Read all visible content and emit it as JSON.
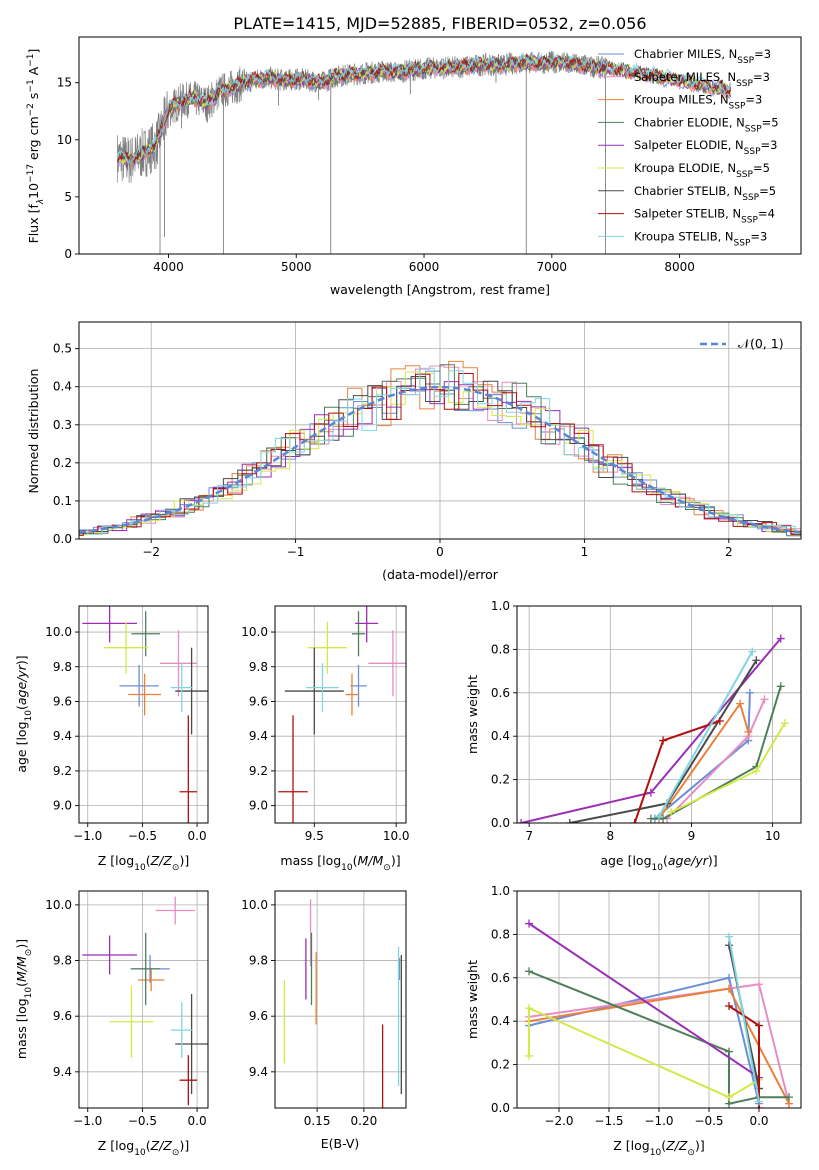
{
  "figure": {
    "title": "PLATE=1415, MJD=52885, FIBERID=0532, z=0.056"
  },
  "legend_models": [
    {
      "name": "Chabrier MILES",
      "n": "3",
      "color": "#6b8ed6"
    },
    {
      "name": "Salpeter MILES",
      "n": "3",
      "color": "#e88cc4"
    },
    {
      "name": "Kroupa MILES",
      "n": "3",
      "color": "#e8823a"
    },
    {
      "name": "Chabrier ELODIE",
      "n": "5",
      "color": "#4f7f5a"
    },
    {
      "name": "Salpeter ELODIE",
      "n": "3",
      "color": "#9a2fb6"
    },
    {
      "name": "Kroupa ELODIE",
      "n": "5",
      "color": "#d4e84a"
    },
    {
      "name": "Chabrier STELIB",
      "n": "5",
      "color": "#4a4a4a"
    },
    {
      "name": "Salpeter STELIB",
      "n": "4",
      "color": "#b01010"
    },
    {
      "name": "Kroupa STELIB",
      "n": "3",
      "color": "#7fd6e0"
    }
  ],
  "legend_n_prefix": "N",
  "legend_n_sub": "SSP",
  "normal_legend": "𝒩(0, 1)",
  "chart_data": [
    {
      "id": "spectrum",
      "type": "line",
      "xlabel": "wavelength [Angstrom, rest frame]",
      "ylabel_main": "Flux [f",
      "ylabel_sub": "λ",
      "ylabel_rest": "10",
      "ylabel_exp": "−17",
      "ylabel_tail": " erg cm",
      "ylabel_exp2": "−2",
      "ylabel_tail2": " s",
      "ylabel_exp3": "−1",
      "ylabel_tail3": " A",
      "ylabel_exp4": "−1",
      "ylabel_end": "]",
      "xlim": [
        3300,
        8950
      ],
      "ylim": [
        0,
        19
      ],
      "xticks": [
        4000,
        5000,
        6000,
        7000,
        8000
      ],
      "yticks": [
        0,
        5,
        10,
        15
      ],
      "data_x_range": [
        3600,
        7420
      ],
      "continuum": [
        [
          3600,
          8.5
        ],
        [
          3700,
          8.2
        ],
        [
          3800,
          8.8
        ],
        [
          3900,
          9.5
        ],
        [
          3950,
          11
        ],
        [
          4000,
          12.6
        ],
        [
          4100,
          13.4
        ],
        [
          4200,
          13.6
        ],
        [
          4300,
          13.2
        ],
        [
          4400,
          14.2
        ],
        [
          4500,
          14.6
        ],
        [
          4600,
          15.0
        ],
        [
          4700,
          15.3
        ],
        [
          4800,
          15.4
        ],
        [
          4900,
          15.2
        ],
        [
          5000,
          15.3
        ],
        [
          5100,
          15.2
        ],
        [
          5200,
          15.0
        ],
        [
          5300,
          15.5
        ],
        [
          5400,
          15.7
        ],
        [
          5500,
          15.8
        ],
        [
          5600,
          15.9
        ],
        [
          5700,
          16.0
        ],
        [
          5800,
          15.9
        ],
        [
          5900,
          16.1
        ],
        [
          6000,
          16.2
        ],
        [
          6100,
          16.3
        ],
        [
          6200,
          16.3
        ],
        [
          6300,
          16.4
        ],
        [
          6400,
          16.5
        ],
        [
          6500,
          16.6
        ],
        [
          6600,
          16.5
        ],
        [
          6700,
          16.7
        ],
        [
          6800,
          16.8
        ],
        [
          6900,
          16.7
        ],
        [
          7000,
          16.8
        ],
        [
          7100,
          16.7
        ],
        [
          7200,
          16.6
        ],
        [
          7300,
          16.4
        ],
        [
          7420,
          16.3
        ]
      ],
      "model_extension": [
        [
          7420,
          16.3
        ],
        [
          7600,
          16.0
        ],
        [
          7800,
          15.6
        ],
        [
          8000,
          15.2
        ],
        [
          8200,
          14.7
        ],
        [
          8400,
          14.3
        ]
      ],
      "absorption_lines": [
        [
          3934,
          0
        ],
        [
          3969,
          1.5
        ],
        [
          4102,
          11
        ],
        [
          4305,
          11.5
        ],
        [
          4341,
          12
        ],
        [
          4430,
          0
        ],
        [
          4861,
          13
        ],
        [
          5175,
          13.5
        ],
        [
          5270,
          0
        ],
        [
          5893,
          14
        ],
        [
          6563,
          15
        ],
        [
          6800,
          0
        ],
        [
          7420,
          0
        ]
      ]
    },
    {
      "id": "residuals",
      "type": "histogram",
      "xlabel": "(data-model)/error",
      "ylabel": "Normed distribution",
      "xlim": [
        -2.5,
        2.5
      ],
      "ylim": [
        0,
        0.57
      ],
      "xticks": [
        -2,
        -1,
        0,
        1,
        2
      ],
      "xticklabels": [
        "−2",
        "−1",
        "0",
        "1",
        "2"
      ],
      "yticks": [
        0,
        0.1,
        0.2,
        0.3,
        0.4,
        0.5
      ],
      "yticklabels": [
        "0.0",
        "0.1",
        "0.2",
        "0.3",
        "0.4",
        "0.5"
      ],
      "bin_width": 0.1
    },
    {
      "id": "age_vs_Z",
      "type": "scatter",
      "xlabel_main": "Z [log",
      "xlabel_sub": "10",
      "xlabel_rest": "(Z/Z",
      "xlabel_sub2": "⊙",
      "xlabel_end": ")]",
      "ylabel_main": "age  [log",
      "ylabel_sub": "10",
      "ylabel_rest": "(age/yr)]",
      "xlim": [
        -1.08,
        0.1
      ],
      "ylim": [
        8.9,
        10.15
      ],
      "xticks": [
        -1.0,
        -0.5,
        0.0
      ],
      "xticklabels": [
        "−1.0",
        "−0.5",
        "0.0"
      ],
      "yticks": [
        9.0,
        9.2,
        9.4,
        9.6,
        9.8,
        10.0
      ],
      "yticklabels": [
        "9.0",
        "9.2",
        "9.4",
        "9.6",
        "9.8",
        "10.0"
      ],
      "points": [
        {
          "model": 0,
          "x": -0.53,
          "xerr": 0.18,
          "y": 9.69,
          "yerr": 0.12
        },
        {
          "model": 1,
          "x": -0.17,
          "xerr": 0.17,
          "y": 9.82,
          "yerr": 0.19
        },
        {
          "model": 2,
          "x": -0.48,
          "xerr": 0.15,
          "y": 9.64,
          "yerr": 0.12
        },
        {
          "model": 3,
          "x": -0.47,
          "xerr": 0.13,
          "y": 9.99,
          "yerr": 0.13
        },
        {
          "model": 4,
          "x": -0.8,
          "xerr": 0.25,
          "y": 10.05,
          "yerr": 0.11
        },
        {
          "model": 5,
          "x": -0.65,
          "xerr": 0.2,
          "y": 9.91,
          "yerr": 0.15
        },
        {
          "model": 6,
          "x": -0.05,
          "xerr": 0.15,
          "y": 9.66,
          "yerr": 0.25
        },
        {
          "model": 7,
          "x": -0.08,
          "xerr": 0.08,
          "y": 9.08,
          "yerr": 0.44
        },
        {
          "model": 8,
          "x": -0.14,
          "xerr": 0.1,
          "y": 9.68,
          "yerr": 0.14
        }
      ]
    },
    {
      "id": "age_vs_mass",
      "type": "scatter",
      "xlabel_main": "mass [log",
      "xlabel_sub": "10",
      "xlabel_rest": "(M/M",
      "xlabel_sub2": "⊙",
      "xlabel_end": ")]",
      "ylabel": "",
      "xlim": [
        9.26,
        10.06
      ],
      "ylim": [
        8.9,
        10.15
      ],
      "xticks": [
        9.5,
        10.0
      ],
      "xticklabels": [
        "9.5",
        "10.0"
      ],
      "yticks": [
        9.0,
        9.2,
        9.4,
        9.6,
        9.8,
        10.0
      ],
      "yticklabels": [
        "9.0",
        "9.2",
        "9.4",
        "9.6",
        "9.8",
        "10.0"
      ],
      "points": [
        {
          "model": 0,
          "x": 9.77,
          "xerr": 0.05,
          "y": 9.69,
          "yerr": 0.12
        },
        {
          "model": 1,
          "x": 9.98,
          "xerr": 0.15,
          "y": 9.82,
          "yerr": 0.19
        },
        {
          "model": 2,
          "x": 9.73,
          "xerr": 0.04,
          "y": 9.64,
          "yerr": 0.12
        },
        {
          "model": 3,
          "x": 9.77,
          "xerr": 0.04,
          "y": 9.99,
          "yerr": 0.13
        },
        {
          "model": 4,
          "x": 9.82,
          "xerr": 0.07,
          "y": 10.05,
          "yerr": 0.11
        },
        {
          "model": 5,
          "x": 9.58,
          "xerr": 0.12,
          "y": 9.91,
          "yerr": 0.15
        },
        {
          "model": 6,
          "x": 9.5,
          "xerr": 0.18,
          "y": 9.66,
          "yerr": 0.25
        },
        {
          "model": 7,
          "x": 9.37,
          "xerr": 0.09,
          "y": 9.08,
          "yerr": 0.44
        },
        {
          "model": 8,
          "x": 9.55,
          "xerr": 0.1,
          "y": 9.68,
          "yerr": 0.14
        }
      ]
    },
    {
      "id": "weight_vs_age",
      "type": "line",
      "xlabel_main": "age  [log",
      "xlabel_sub": "10",
      "xlabel_rest": "(age/yr)]",
      "ylabel": "mass weight",
      "xlim": [
        6.85,
        10.35
      ],
      "ylim": [
        0,
        1
      ],
      "xticks": [
        7,
        8,
        9,
        10
      ],
      "yticks": [
        0,
        0.2,
        0.4,
        0.6,
        0.8,
        1.0
      ],
      "yticklabels": [
        "0.0",
        "0.2",
        "0.4",
        "0.6",
        "0.8",
        "1.0"
      ],
      "series": [
        {
          "model": 0,
          "x": [
            8.55,
            9.7,
            9.72
          ],
          "y": [
            0.02,
            0.38,
            0.6
          ]
        },
        {
          "model": 1,
          "x": [
            8.7,
            9.7,
            9.9
          ],
          "y": [
            0.02,
            0.4,
            0.57
          ]
        },
        {
          "model": 2,
          "x": [
            8.6,
            9.6,
            9.7
          ],
          "y": [
            0.02,
            0.55,
            0.42
          ]
        },
        {
          "model": 3,
          "x": [
            8.5,
            8.65,
            9.8,
            10.1
          ],
          "y": [
            0.02,
            0.02,
            0.26,
            0.63
          ]
        },
        {
          "model": 4,
          "x": [
            6.9,
            8.5,
            10.1
          ],
          "y": [
            0.0,
            0.14,
            0.85
          ]
        },
        {
          "model": 5,
          "x": [
            8.75,
            9.8,
            10.15
          ],
          "y": [
            0.05,
            0.24,
            0.46
          ]
        },
        {
          "model": 6,
          "x": [
            7.5,
            8.7,
            9.8
          ],
          "y": [
            0.0,
            0.09,
            0.75
          ]
        },
        {
          "model": 7,
          "x": [
            8.3,
            8.65,
            9.35
          ],
          "y": [
            0.0,
            0.38,
            0.47
          ]
        },
        {
          "model": 8,
          "x": [
            8.6,
            9.75
          ],
          "y": [
            0.03,
            0.79
          ]
        }
      ]
    },
    {
      "id": "mass_vs_Z",
      "type": "scatter",
      "xlabel_main": "Z [log",
      "xlabel_sub": "10",
      "xlabel_rest": "(Z/Z",
      "xlabel_sub2": "⊙",
      "xlabel_end": ")]",
      "ylabel_main": "mass [log",
      "ylabel_sub": "10",
      "ylabel_rest": "(M/M",
      "ylabel_sub2": "⊙",
      "ylabel_end": ")]",
      "xlim": [
        -1.08,
        0.1
      ],
      "ylim": [
        9.27,
        10.05
      ],
      "xticks": [
        -1.0,
        -0.5,
        0.0
      ],
      "xticklabels": [
        "−1.0",
        "−0.5",
        "0.0"
      ],
      "yticks": [
        9.4,
        9.6,
        9.8,
        10.0
      ],
      "yticklabels": [
        "9.4",
        "9.6",
        "9.8",
        "10.0"
      ],
      "points": [
        {
          "model": 0,
          "x": -0.43,
          "xerr": 0.18,
          "y": 9.77,
          "yerr": 0.05
        },
        {
          "model": 1,
          "x": -0.2,
          "xerr": 0.18,
          "y": 9.98,
          "yerr": 0.05
        },
        {
          "model": 2,
          "x": -0.42,
          "xerr": 0.12,
          "y": 9.73,
          "yerr": 0.04
        },
        {
          "model": 3,
          "x": -0.47,
          "xerr": 0.13,
          "y": 9.77,
          "yerr": 0.13
        },
        {
          "model": 4,
          "x": -0.8,
          "xerr": 0.25,
          "y": 9.82,
          "yerr": 0.07
        },
        {
          "model": 5,
          "x": -0.6,
          "xerr": 0.2,
          "y": 9.58,
          "yerr": 0.13
        },
        {
          "model": 6,
          "x": -0.05,
          "xerr": 0.15,
          "y": 9.5,
          "yerr": 0.18
        },
        {
          "model": 7,
          "x": -0.08,
          "xerr": 0.08,
          "y": 9.37,
          "yerr": 0.09
        },
        {
          "model": 8,
          "x": -0.14,
          "xerr": 0.1,
          "y": 9.55,
          "yerr": 0.1
        }
      ]
    },
    {
      "id": "mass_vs_EBV",
      "type": "scatter",
      "xlabel": "E(B-V)",
      "ylabel": "",
      "xlim": [
        0.105,
        0.245
      ],
      "ylim": [
        9.27,
        10.05
      ],
      "xticks": [
        0.15,
        0.2
      ],
      "xticklabels": [
        "0.15",
        "0.20"
      ],
      "yticks": [
        9.4,
        9.6,
        9.8,
        10.0
      ],
      "yticklabels": [
        "9.4",
        "9.6",
        "9.8",
        "10.0"
      ],
      "points": [
        {
          "model": 0,
          "x": 0.238,
          "xerr": 0,
          "y": 9.77,
          "yerr": 0.04
        },
        {
          "model": 1,
          "x": 0.143,
          "xerr": 0,
          "y": 9.9,
          "yerr": 0.12
        },
        {
          "model": 2,
          "x": 0.149,
          "xerr": 0,
          "y": 9.7,
          "yerr": 0.13
        },
        {
          "model": 3,
          "x": 0.144,
          "xerr": 0,
          "y": 9.77,
          "yerr": 0.13
        },
        {
          "model": 4,
          "x": 0.138,
          "xerr": 0,
          "y": 9.77,
          "yerr": 0.11
        },
        {
          "model": 5,
          "x": 0.115,
          "xerr": 0,
          "y": 9.58,
          "yerr": 0.15
        },
        {
          "model": 6,
          "x": 0.24,
          "xerr": 0,
          "y": 9.57,
          "yerr": 0.25
        },
        {
          "model": 7,
          "x": 0.22,
          "xerr": 0,
          "y": 9.42,
          "yerr": 0.15
        },
        {
          "model": 8,
          "x": 0.237,
          "xerr": 0,
          "y": 9.6,
          "yerr": 0.25
        }
      ]
    },
    {
      "id": "weight_vs_Z",
      "type": "line",
      "xlabel_main": "Z [log",
      "xlabel_sub": "10",
      "xlabel_rest": "(Z/Z",
      "xlabel_sub2": "⊙",
      "xlabel_end": ")]",
      "ylabel": "mass weight",
      "xlim": [
        -2.42,
        0.42
      ],
      "ylim": [
        0,
        1
      ],
      "xticks": [
        -2.0,
        -1.5,
        -1.0,
        -0.5,
        0.0
      ],
      "xticklabels": [
        "−2.0",
        "−1.5",
        "−1.0",
        "−0.5",
        "0.0"
      ],
      "yticks": [
        0,
        0.2,
        0.4,
        0.6,
        0.8,
        1.0
      ],
      "yticklabels": [
        "0.0",
        "0.2",
        "0.4",
        "0.6",
        "0.8",
        "1.0"
      ],
      "series": [
        {
          "model": 0,
          "x": [
            -2.3,
            -0.3,
            0.0
          ],
          "y": [
            0.38,
            0.6,
            0.02
          ]
        },
        {
          "model": 1,
          "x": [
            -2.3,
            -0.3,
            0.0,
            0.3
          ],
          "y": [
            0.42,
            0.55,
            0.57,
            0.02
          ]
        },
        {
          "model": 2,
          "x": [
            -2.3,
            -0.3,
            0.3
          ],
          "y": [
            0.4,
            0.55,
            0.02
          ]
        },
        {
          "model": 3,
          "x": [
            -2.3,
            -0.3,
            -0.3,
            0.0,
            0.3
          ],
          "y": [
            0.63,
            0.26,
            0.02,
            0.05,
            0.05
          ]
        },
        {
          "model": 4,
          "x": [
            -2.3,
            0.0
          ],
          "y": [
            0.85,
            0.14
          ]
        },
        {
          "model": 5,
          "x": [
            -2.3,
            -2.3,
            -0.3,
            0.0
          ],
          "y": [
            0.24,
            0.46,
            0.05,
            0.13
          ]
        },
        {
          "model": 6,
          "x": [
            -0.3,
            0.0,
            0.0
          ],
          "y": [
            0.75,
            0.09,
            0.09
          ]
        },
        {
          "model": 7,
          "x": [
            -0.3,
            0.0,
            0.0
          ],
          "y": [
            0.47,
            0.38,
            0.0
          ]
        },
        {
          "model": 8,
          "x": [
            -0.3,
            0.0
          ],
          "y": [
            0.79,
            0.03
          ]
        }
      ]
    }
  ]
}
